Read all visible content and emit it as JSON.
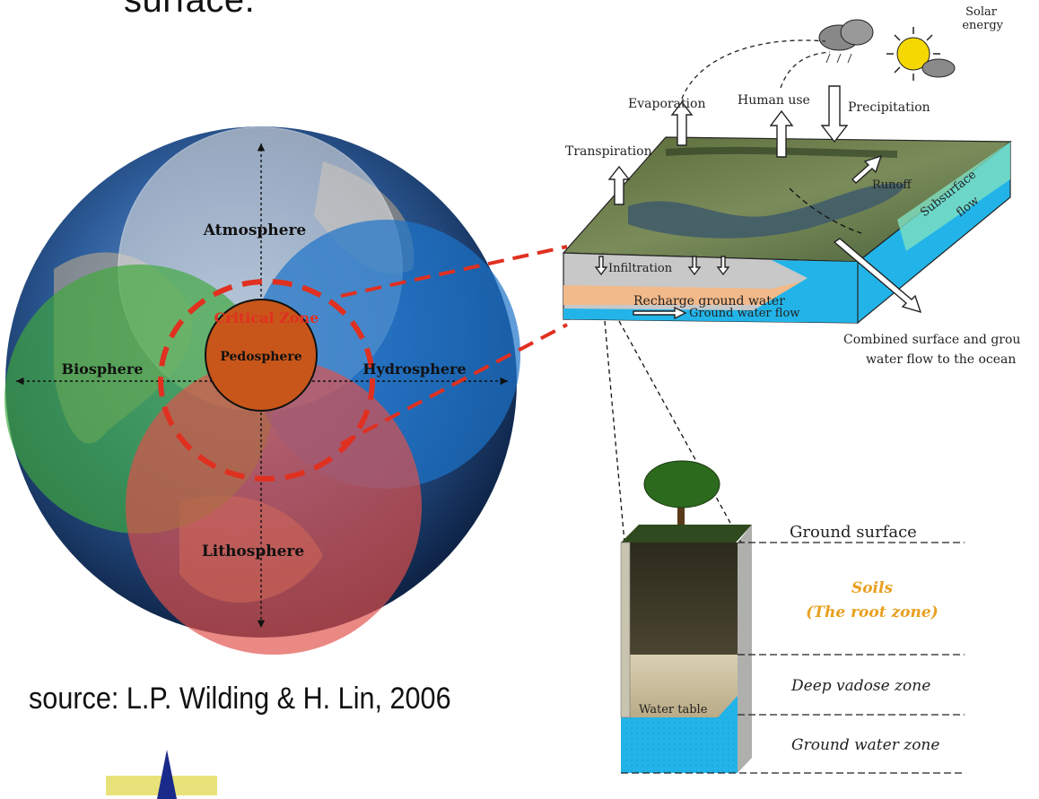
{
  "slide": {
    "top_text": "surface.",
    "source": "source: L.P. Wilding & H. Lin, 2006"
  },
  "sphere": {
    "atmosphere": "Atmosphere",
    "biosphere": "Biosphere",
    "hydrosphere": "Hydrosphere",
    "lithosphere": "Lithosphere",
    "pedosphere": "Pedosphere",
    "critical_zone": "Critical Zone"
  },
  "landscape": {
    "solar_energy_line1": "Solar",
    "solar_energy_line2": "energy",
    "evaporation": "Evaporation",
    "human_use": "Human use",
    "precipitation": "Precipitation",
    "transpiration": "Transpiration",
    "runoff": "Runoff",
    "subsurface_flow_line1": "Subsurface",
    "subsurface_flow_line2": "flow",
    "infiltration": "Infiltration",
    "recharge": "Recharge ground water",
    "ground_water_flow": "Ground water flow",
    "combined_line1": "Combined surface and grou",
    "combined_line2": "water flow to the ocean"
  },
  "profile": {
    "ground_surface": "Ground surface",
    "soils_line1": "Soils",
    "soils_line2": "(The root zone)",
    "deep_vadose": "Deep vadose zone",
    "water_table": "Water table",
    "ground_water_zone": "Ground water zone"
  },
  "colors": {
    "atmosphere": "#c9c9c9",
    "biosphere": "#3fa83c",
    "hydrosphere": "#1d73c9",
    "lithosphere": "#e0504a",
    "pedosphere": "#c8561a",
    "critical_zone": "#e03020",
    "water": "#22b4e8",
    "soil_label": "#e8a020"
  }
}
